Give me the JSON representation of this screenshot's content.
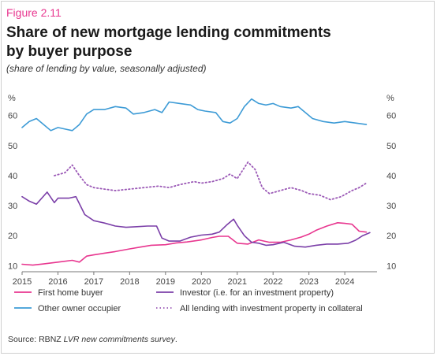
{
  "header": {
    "figure_label": "Figure 2.11",
    "title": "Share of new mortgage lending commitments by buyer purpose",
    "subtitle": "(share of lending by value, seasonally adjusted)"
  },
  "source": {
    "prefix": "Source: RBNZ ",
    "survey": "LVR new commitments survey",
    "suffix": "."
  },
  "colors": {
    "first_home_buyer": "#e8368f",
    "investor": "#7b3fa8",
    "other_owner_occupier": "#3d9bd6",
    "all_lending_investment": "#9b59b6",
    "axis": "#777777"
  },
  "chart_data": {
    "type": "line",
    "y_unit_left": "%",
    "y_unit_right": "%",
    "ylim": [
      8,
      67
    ],
    "xlim": [
      2015,
      2024.9
    ],
    "y_ticks": [
      10,
      20,
      30,
      40,
      50,
      60
    ],
    "x_ticks": [
      "2015",
      "2016",
      "2017",
      "2018",
      "2019",
      "2020",
      "2021",
      "2022",
      "2023",
      "2024"
    ],
    "grid": false,
    "legend_position": "bottom",
    "series": [
      {
        "name": "First home buyer",
        "style": "solid",
        "color": "#e8368f",
        "x": [
          2015.0,
          2015.3,
          2015.6,
          2016.0,
          2016.4,
          2016.6,
          2016.8,
          2017.0,
          2017.3,
          2017.6,
          2018.0,
          2018.3,
          2018.6,
          2019.0,
          2019.3,
          2019.6,
          2020.0,
          2020.3,
          2020.5,
          2020.75,
          2021.0,
          2021.3,
          2021.6,
          2021.9,
          2022.2,
          2022.5,
          2022.8,
          2023.0,
          2023.2,
          2023.5,
          2023.8,
          2024.0,
          2024.2,
          2024.4,
          2024.6
        ],
        "y": [
          10.5,
          10.2,
          10.6,
          11.2,
          11.8,
          11.2,
          13.2,
          13.6,
          14.2,
          14.7,
          15.6,
          16.2,
          16.8,
          17.0,
          17.6,
          17.9,
          18.6,
          19.4,
          19.8,
          19.8,
          17.5,
          17.2,
          18.6,
          17.8,
          17.8,
          18.6,
          19.6,
          20.5,
          21.8,
          23.2,
          24.3,
          24.1,
          23.8,
          21.5,
          21.2
        ]
      },
      {
        "name": "Investor (i.e. for an investment property)",
        "style": "solid",
        "color": "#7b3fa8",
        "x": [
          2015.0,
          2015.2,
          2015.4,
          2015.7,
          2015.9,
          2016.0,
          2016.3,
          2016.5,
          2016.75,
          2017.0,
          2017.3,
          2017.6,
          2017.9,
          2018.2,
          2018.5,
          2018.75,
          2018.9,
          2019.1,
          2019.4,
          2019.7,
          2020.0,
          2020.3,
          2020.5,
          2020.7,
          2020.9,
          2021.0,
          2021.2,
          2021.4,
          2021.6,
          2021.8,
          2022.0,
          2022.3,
          2022.6,
          2022.9,
          2023.2,
          2023.5,
          2023.8,
          2024.1,
          2024.3,
          2024.5,
          2024.7
        ],
        "y": [
          33,
          31.5,
          30.5,
          34.5,
          31,
          32.5,
          32.5,
          33,
          27,
          25,
          24.2,
          23.2,
          22.8,
          23,
          23.2,
          23.2,
          19.2,
          18.2,
          18.2,
          19.5,
          20.2,
          20.5,
          21.2,
          23.5,
          25.5,
          23.5,
          20,
          17.8,
          17.5,
          16.8,
          17,
          17.8,
          16.5,
          16.2,
          16.8,
          17.2,
          17.2,
          17.5,
          18.5,
          20,
          21
        ]
      },
      {
        "name": "Other owner occupier",
        "style": "solid",
        "color": "#3d9bd6",
        "x": [
          2015.0,
          2015.2,
          2015.4,
          2015.6,
          2015.8,
          2016.0,
          2016.2,
          2016.4,
          2016.6,
          2016.8,
          2017.0,
          2017.3,
          2017.6,
          2017.9,
          2018.1,
          2018.4,
          2018.7,
          2018.9,
          2019.1,
          2019.4,
          2019.7,
          2019.9,
          2020.1,
          2020.4,
          2020.6,
          2020.8,
          2021.0,
          2021.2,
          2021.4,
          2021.6,
          2021.8,
          2022.0,
          2022.2,
          2022.5,
          2022.7,
          2022.9,
          2023.1,
          2023.4,
          2023.7,
          2024.0,
          2024.3,
          2024.6
        ],
        "y": [
          56,
          58,
          59,
          57,
          55,
          56,
          55.5,
          55,
          57,
          60.5,
          62,
          62,
          63,
          62.5,
          60.5,
          61,
          62,
          61,
          64.5,
          64,
          63.5,
          62,
          61.5,
          61,
          58,
          57.5,
          59,
          63,
          65.5,
          64,
          63.5,
          64,
          63,
          62.5,
          63,
          61,
          59,
          58,
          57.5,
          58,
          57.5,
          57
        ]
      },
      {
        "name": "All lending with investment property in collateral",
        "style": "dotted",
        "color": "#9b59b6",
        "x": [
          2015.9,
          2016.2,
          2016.4,
          2016.6,
          2016.8,
          2017.0,
          2017.3,
          2017.6,
          2018.0,
          2018.4,
          2018.8,
          2019.1,
          2019.4,
          2019.8,
          2020.0,
          2020.3,
          2020.6,
          2020.8,
          2021.0,
          2021.3,
          2021.5,
          2021.7,
          2021.9,
          2022.2,
          2022.5,
          2022.8,
          2023.0,
          2023.3,
          2023.6,
          2023.9,
          2024.2,
          2024.4,
          2024.6
        ],
        "y": [
          40,
          41,
          43.5,
          40,
          37,
          36,
          35.5,
          35,
          35.5,
          36,
          36.5,
          36,
          37,
          38,
          37.5,
          38,
          39,
          40.5,
          39,
          44.5,
          42,
          36,
          34,
          35,
          36,
          35,
          34,
          33.5,
          32,
          33,
          35,
          36,
          37.5
        ]
      }
    ],
    "legend": [
      "First home buyer",
      "Investor (i.e. for an investment property)",
      "Other owner occupier",
      "All lending with investment property in collateral"
    ]
  }
}
